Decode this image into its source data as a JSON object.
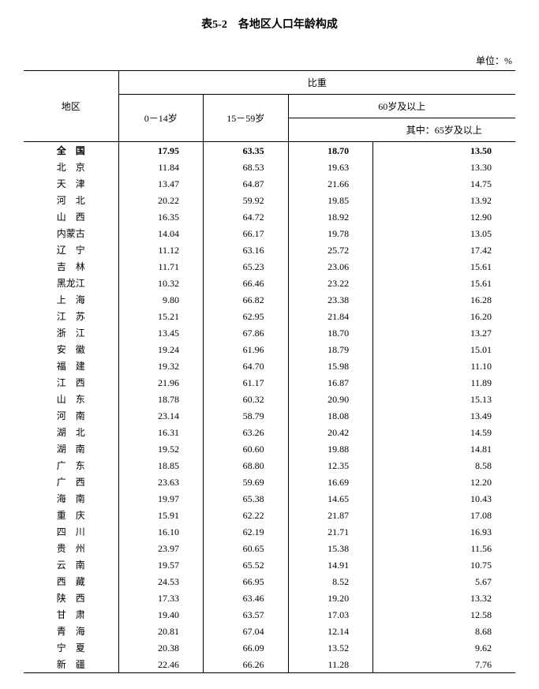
{
  "title": "表5-2　各地区人口年龄构成",
  "unit": "单位：%",
  "headers": {
    "region": "地区",
    "proportion": "比重",
    "col1": "0－14岁",
    "col2": "15－59岁",
    "col3": "60岁及以上",
    "col4": "其中：65岁及以上"
  },
  "rows": [
    {
      "region": "全　国",
      "bold": true,
      "v1": "17.95",
      "v2": "63.35",
      "v3": "18.70",
      "v4": "13.50"
    },
    {
      "region": "北　京",
      "bold": false,
      "v1": "11.84",
      "v2": "68.53",
      "v3": "19.63",
      "v4": "13.30"
    },
    {
      "region": "天　津",
      "bold": false,
      "v1": "13.47",
      "v2": "64.87",
      "v3": "21.66",
      "v4": "14.75"
    },
    {
      "region": "河　北",
      "bold": false,
      "v1": "20.22",
      "v2": "59.92",
      "v3": "19.85",
      "v4": "13.92"
    },
    {
      "region": "山　西",
      "bold": false,
      "v1": "16.35",
      "v2": "64.72",
      "v3": "18.92",
      "v4": "12.90"
    },
    {
      "region": "内蒙古",
      "bold": false,
      "v1": "14.04",
      "v2": "66.17",
      "v3": "19.78",
      "v4": "13.05"
    },
    {
      "region": "辽　宁",
      "bold": false,
      "v1": "11.12",
      "v2": "63.16",
      "v3": "25.72",
      "v4": "17.42"
    },
    {
      "region": "吉　林",
      "bold": false,
      "v1": "11.71",
      "v2": "65.23",
      "v3": "23.06",
      "v4": "15.61"
    },
    {
      "region": "黑龙江",
      "bold": false,
      "v1": "10.32",
      "v2": "66.46",
      "v3": "23.22",
      "v4": "15.61"
    },
    {
      "region": "上　海",
      "bold": false,
      "v1": "9.80",
      "v2": "66.82",
      "v3": "23.38",
      "v4": "16.28"
    },
    {
      "region": "江　苏",
      "bold": false,
      "v1": "15.21",
      "v2": "62.95",
      "v3": "21.84",
      "v4": "16.20"
    },
    {
      "region": "浙　江",
      "bold": false,
      "v1": "13.45",
      "v2": "67.86",
      "v3": "18.70",
      "v4": "13.27"
    },
    {
      "region": "安　徽",
      "bold": false,
      "v1": "19.24",
      "v2": "61.96",
      "v3": "18.79",
      "v4": "15.01"
    },
    {
      "region": "福　建",
      "bold": false,
      "v1": "19.32",
      "v2": "64.70",
      "v3": "15.98",
      "v4": "11.10"
    },
    {
      "region": "江　西",
      "bold": false,
      "v1": "21.96",
      "v2": "61.17",
      "v3": "16.87",
      "v4": "11.89"
    },
    {
      "region": "山　东",
      "bold": false,
      "v1": "18.78",
      "v2": "60.32",
      "v3": "20.90",
      "v4": "15.13"
    },
    {
      "region": "河　南",
      "bold": false,
      "v1": "23.14",
      "v2": "58.79",
      "v3": "18.08",
      "v4": "13.49"
    },
    {
      "region": "湖　北",
      "bold": false,
      "v1": "16.31",
      "v2": "63.26",
      "v3": "20.42",
      "v4": "14.59"
    },
    {
      "region": "湖　南",
      "bold": false,
      "v1": "19.52",
      "v2": "60.60",
      "v3": "19.88",
      "v4": "14.81"
    },
    {
      "region": "广　东",
      "bold": false,
      "v1": "18.85",
      "v2": "68.80",
      "v3": "12.35",
      "v4": "8.58"
    },
    {
      "region": "广　西",
      "bold": false,
      "v1": "23.63",
      "v2": "59.69",
      "v3": "16.69",
      "v4": "12.20"
    },
    {
      "region": "海　南",
      "bold": false,
      "v1": "19.97",
      "v2": "65.38",
      "v3": "14.65",
      "v4": "10.43"
    },
    {
      "region": "重　庆",
      "bold": false,
      "v1": "15.91",
      "v2": "62.22",
      "v3": "21.87",
      "v4": "17.08"
    },
    {
      "region": "四　川",
      "bold": false,
      "v1": "16.10",
      "v2": "62.19",
      "v3": "21.71",
      "v4": "16.93"
    },
    {
      "region": "贵　州",
      "bold": false,
      "v1": "23.97",
      "v2": "60.65",
      "v3": "15.38",
      "v4": "11.56"
    },
    {
      "region": "云　南",
      "bold": false,
      "v1": "19.57",
      "v2": "65.52",
      "v3": "14.91",
      "v4": "10.75"
    },
    {
      "region": "西　藏",
      "bold": false,
      "v1": "24.53",
      "v2": "66.95",
      "v3": "8.52",
      "v4": "5.67"
    },
    {
      "region": "陕　西",
      "bold": false,
      "v1": "17.33",
      "v2": "63.46",
      "v3": "19.20",
      "v4": "13.32"
    },
    {
      "region": "甘　肃",
      "bold": false,
      "v1": "19.40",
      "v2": "63.57",
      "v3": "17.03",
      "v4": "12.58"
    },
    {
      "region": "青　海",
      "bold": false,
      "v1": "20.81",
      "v2": "67.04",
      "v3": "12.14",
      "v4": "8.68"
    },
    {
      "region": "宁　夏",
      "bold": false,
      "v1": "20.38",
      "v2": "66.09",
      "v3": "13.52",
      "v4": "9.62"
    },
    {
      "region": "新　疆",
      "bold": false,
      "v1": "22.46",
      "v2": "66.26",
      "v3": "11.28",
      "v4": "7.76"
    }
  ],
  "styling": {
    "type": "table",
    "background_color": "#ffffff",
    "text_color": "#000000",
    "border_color": "#000000",
    "font_family": "SimSun",
    "title_fontsize": 14,
    "body_fontsize": 12,
    "columns": [
      "地区",
      "0－14岁",
      "15－59岁",
      "60岁及以上",
      "其中：65岁及以上"
    ],
    "column_alignment": [
      "center",
      "right",
      "right",
      "right",
      "right"
    ]
  }
}
